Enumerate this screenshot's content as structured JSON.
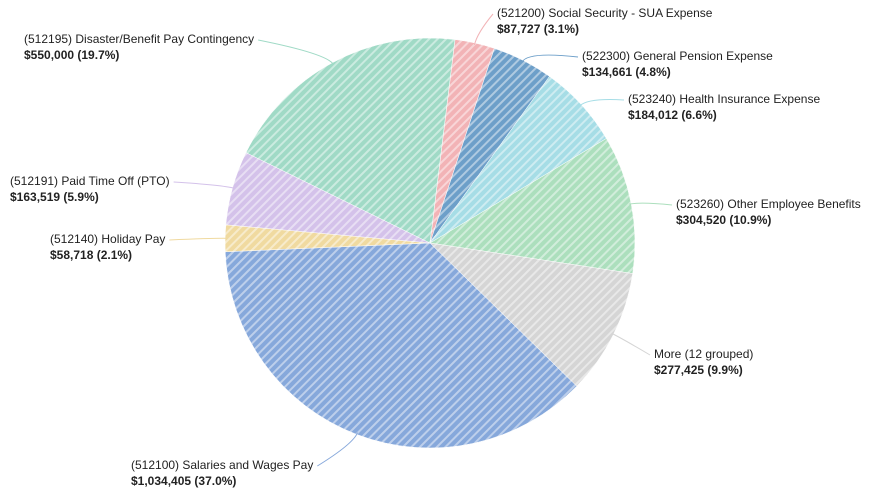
{
  "chart_data": {
    "type": "pie",
    "categories": [
      "(521200) Social Security - SUA Expense",
      "(522300) General Pension Expense",
      "(523240) Health Insurance Expense",
      "(523260) Other Employee Benefits",
      "More (12 grouped)",
      "(512100) Salaries and Wages Pay",
      "(512140) Holiday Pay",
      "(512191) Paid Time Off (PTO)",
      "(512195) Disaster/Benefit Pay Contingency"
    ],
    "values": [
      87727,
      134661,
      184012,
      304520,
      277425,
      1034405,
      58718,
      163519,
      550000
    ],
    "value_labels": [
      "$87,727 (3.1%)",
      "$134,661 (4.8%)",
      "$184,012 (6.6%)",
      "$304,520 (10.9%)",
      "$277,425 (9.9%)",
      "$1,034,405 (37.0%)",
      "$58,718 (2.1%)",
      "$163,519 (5.9%)",
      "$550,000 (19.7%)"
    ],
    "colors": [
      "#f2b3b6",
      "#6d9fc9",
      "#a6dde6",
      "#acdfbd",
      "#d5d5d5",
      "#86a8db",
      "#f0daa0",
      "#d4c2ea",
      "#a0dac6"
    ]
  }
}
